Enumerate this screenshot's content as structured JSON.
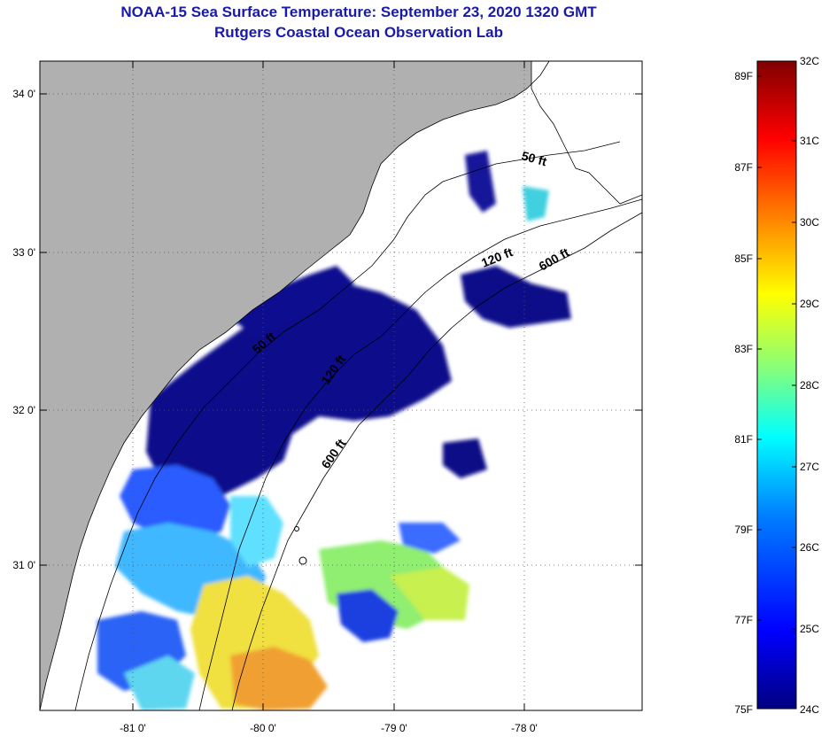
{
  "title": "NOAA-15 Sea Surface Temperature:  September 23, 2020 1320 GMT",
  "subtitle": "Rutgers Coastal Ocean Observation Lab",
  "map": {
    "x_ticks": [
      "-81 0'",
      "-80 0'",
      "-79 0'",
      "-78 0'"
    ],
    "y_ticks": [
      "34 0'",
      "33 0'",
      "32 0'",
      "31 0'"
    ],
    "contours": [
      "50 ft",
      "120 ft",
      "600 ft",
      "50 ft",
      "120 ft",
      "600 ft"
    ],
    "land_color": "#b0b0b0",
    "ocean_color": "#ffffff"
  },
  "colorbar": {
    "fahrenheit": [
      "89F",
      "87F",
      "85F",
      "83F",
      "81F",
      "79F",
      "77F",
      "75F"
    ],
    "celsius": [
      "32C",
      "31C",
      "30C",
      "29C",
      "28C",
      "27C",
      "26C",
      "25C",
      "24C"
    ],
    "colors": [
      "#000080",
      "#0000ff",
      "#0080ff",
      "#00ffff",
      "#80ff80",
      "#ffff00",
      "#ff8000",
      "#ff0000",
      "#800000"
    ]
  }
}
